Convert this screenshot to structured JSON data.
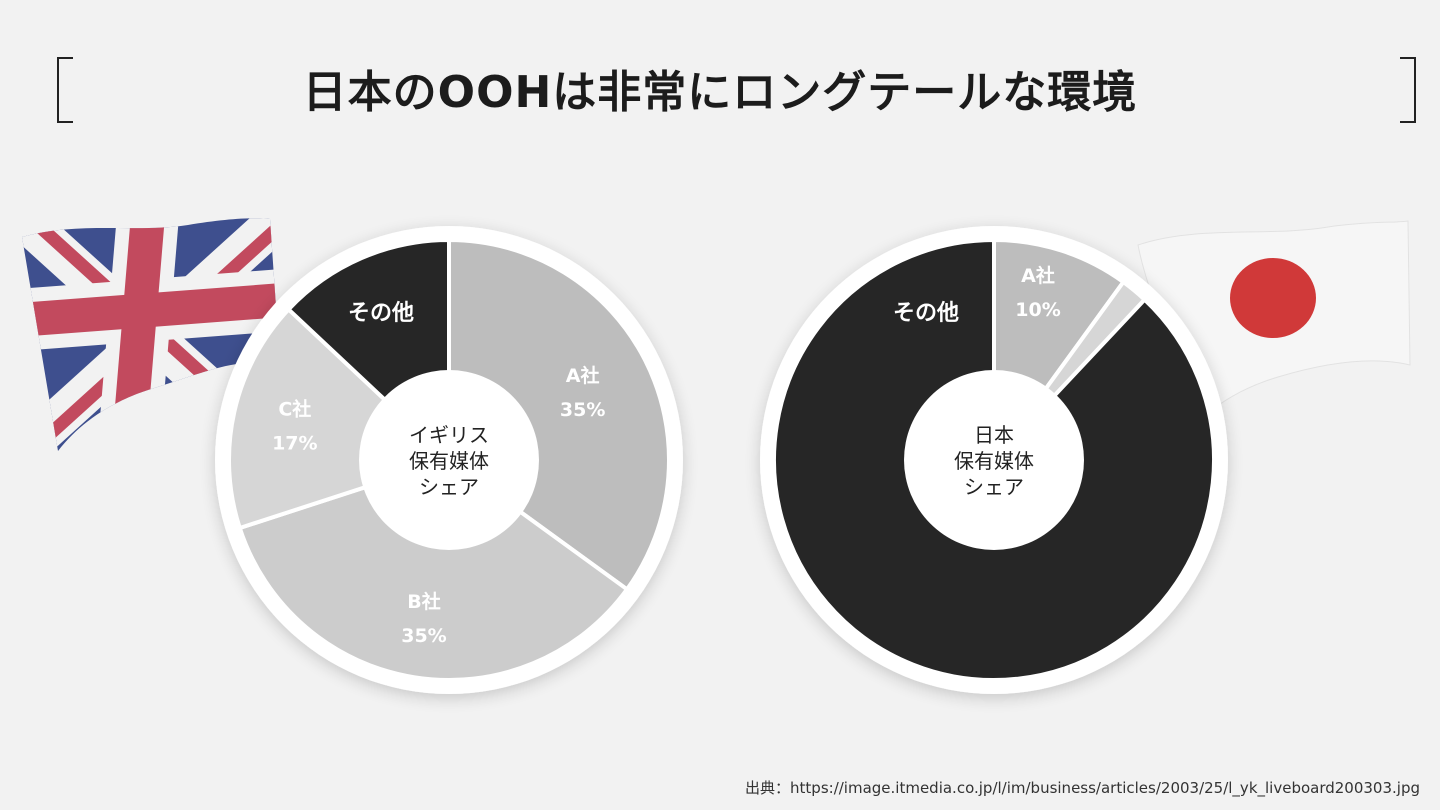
{
  "title": "日本のOOHは非常にロングテールな環境",
  "source": "出典：https://image.itmedia.co.jp/l/im/business/articles/2003/25/l_yk_liveboard200303.jpg",
  "colors": {
    "dark": "#262626",
    "light_gray": "#bdbdbd",
    "lighter_gray": "#cccccc",
    "lightest_gray": "#d6d6d6",
    "separator": "#ffffff"
  },
  "icons": {
    "uk_flag": "uk-flag-icon",
    "jp_flag": "japan-flag-icon"
  },
  "chart_data": [
    {
      "type": "pie",
      "center_label": [
        "イギリス",
        "保有媒体",
        "シェア"
      ],
      "slices": [
        {
          "name": "A社",
          "value": 35,
          "value_label": "35%",
          "color": "#bdbdbd"
        },
        {
          "name": "B社",
          "value": 35,
          "value_label": "35%",
          "color": "#cccccc"
        },
        {
          "name": "C社",
          "value": 17,
          "value_label": "17%",
          "color": "#d6d6d6"
        },
        {
          "name": "その他",
          "value": 13,
          "value_label": "",
          "color": "#262626"
        }
      ]
    },
    {
      "type": "pie",
      "center_label": [
        "日本",
        "保有媒体",
        "シェア"
      ],
      "slices": [
        {
          "name": "A社",
          "value": 10,
          "value_label": "10%",
          "color": "#bdbdbd"
        },
        {
          "name": "",
          "value": 2,
          "value_label": "",
          "color": "#d6d6d6"
        },
        {
          "name": "その他",
          "value": 88,
          "value_label": "",
          "color": "#262626"
        }
      ]
    }
  ]
}
